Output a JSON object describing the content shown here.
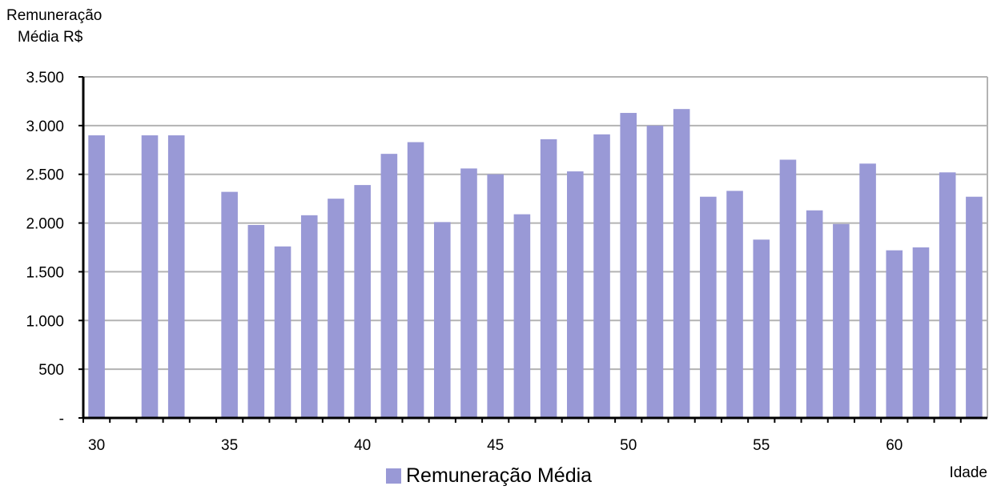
{
  "chart_data": {
    "type": "bar",
    "ylabel_line1": "Remuneração",
    "ylabel_line2": "Média R$",
    "xlabel": "Idade",
    "ylim": [
      0,
      3500
    ],
    "xlim": [
      29.5,
      63.5
    ],
    "grid": true,
    "legend_position": "bottom",
    "bar_color": "#9999d6",
    "y_ticks": [
      {
        "value": 0,
        "label": "-"
      },
      {
        "value": 500,
        "label": "500"
      },
      {
        "value": 1000,
        "label": "1.000"
      },
      {
        "value": 1500,
        "label": "1.500"
      },
      {
        "value": 2000,
        "label": "2.000"
      },
      {
        "value": 2500,
        "label": "2.500"
      },
      {
        "value": 3000,
        "label": "3.000"
      },
      {
        "value": 3500,
        "label": "3.500"
      }
    ],
    "x_ticks": [
      30,
      35,
      40,
      45,
      50,
      55,
      60
    ],
    "series": [
      {
        "name": "Remuneração Média",
        "x": [
          30,
          32,
          33,
          35,
          36,
          37,
          38,
          39,
          40,
          41,
          42,
          43,
          44,
          45,
          46,
          47,
          48,
          49,
          50,
          51,
          52,
          53,
          54,
          55,
          56,
          57,
          58,
          59,
          60,
          61,
          62,
          63
        ],
        "values": [
          2900,
          2900,
          2900,
          2320,
          1980,
          1760,
          2080,
          2250,
          2390,
          2710,
          2830,
          2010,
          2560,
          2500,
          2090,
          2860,
          2530,
          2910,
          3130,
          3000,
          3170,
          2270,
          2330,
          1830,
          2650,
          2130,
          1990,
          2610,
          1720,
          1750,
          2520,
          2270
        ]
      }
    ]
  }
}
